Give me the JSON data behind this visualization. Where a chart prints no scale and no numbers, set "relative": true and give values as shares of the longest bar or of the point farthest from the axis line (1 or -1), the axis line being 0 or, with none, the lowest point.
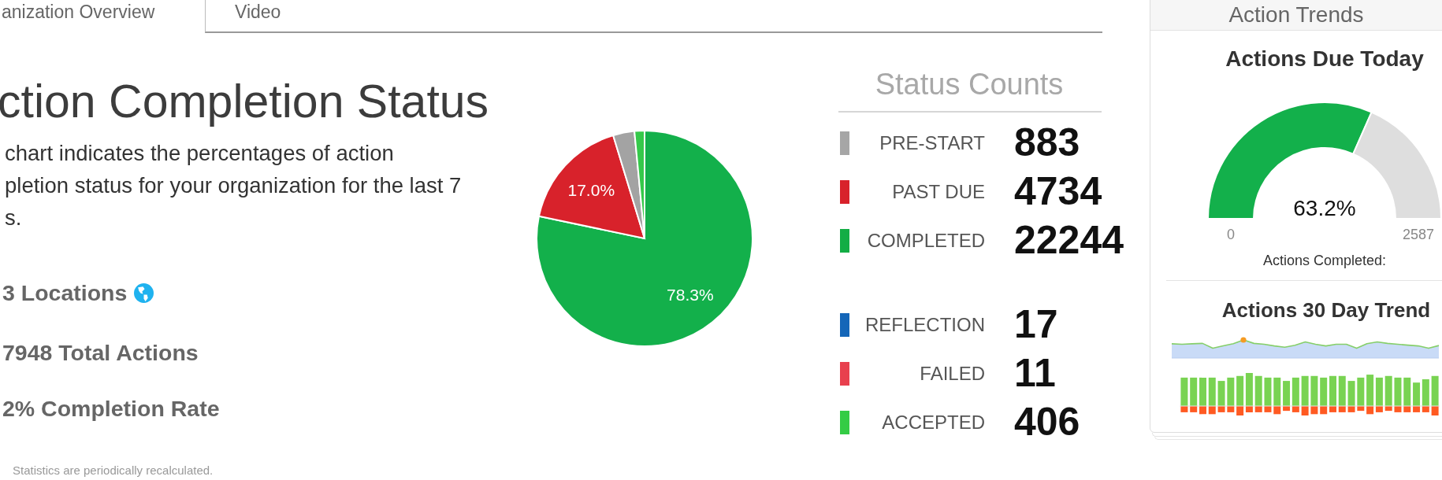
{
  "chart_data": [
    {
      "type": "other",
      "title": "ction Completion Status",
      "subtitle": "chart indicates the percentages of action\npletion status for your organization for the last 7\ns.",
      "annotations": [
        "anization Overview",
        "Video",
        "3 Locations",
        "7948 Total Actions",
        "2% Completion Rate",
        "Statistics are periodically recalculated."
      ]
    },
    {
      "type": "pie",
      "categories": [
        null,
        null,
        null,
        null
      ],
      "values": [
        78.3,
        17.0,
        3.2,
        1.5
      ],
      "colors": [
        "#13b04b",
        "#d8222b",
        "#a3a3a3",
        "#35c94a"
      ],
      "value_labels": [
        "78.3%",
        "17.0%",
        null,
        null
      ]
    },
    {
      "type": "other",
      "title": "Status Counts",
      "categories": [
        "PRE-START",
        "PAST DUE",
        "COMPLETED",
        "REFLECTION",
        "FAILED",
        "ACCEPTED"
      ],
      "value_labels": [
        "883",
        "4734",
        "22244",
        "17",
        "11",
        "406"
      ],
      "colors": [
        "#a6a6a6",
        "#d8222b",
        "#13ad45",
        "#1466b8",
        "#e8404e",
        "#34cc45"
      ]
    },
    {
      "type": "other",
      "title": "Action Trends"
    },
    {
      "type": "donut",
      "title": "Actions Due Today",
      "categories": [
        null,
        null
      ],
      "values": [
        63.2,
        36.8
      ],
      "colors": [
        "#13b04b",
        "#dedede"
      ],
      "value_labels": [
        "63.2%",
        null
      ],
      "annotations": [
        "0",
        "2587",
        "Actions Completed:"
      ]
    },
    {
      "type": "line",
      "relative": true,
      "title": "Actions 30 Day Trend",
      "categories": [
        null,
        null,
        null,
        null,
        null,
        null,
        null,
        null,
        null,
        null,
        null,
        null,
        null,
        null,
        null,
        null,
        null,
        null,
        null,
        null,
        null,
        null,
        null,
        null,
        null,
        null,
        null
      ],
      "series": [
        {
          "type": "area",
          "color": "#c9dbf7",
          "values": [
            0.79,
            0.76,
            0.79,
            0.81,
            0.54,
            0.67,
            0.79,
            1,
            0.81,
            0.76,
            0.67,
            0.6,
            0.71,
            0.89,
            0.76,
            0.67,
            0.76,
            0.76,
            0.54,
            0.79,
            0.89,
            0.81,
            0.76,
            0.71,
            0.67,
            0.54,
            0.69
          ]
        },
        {
          "color": "#86cf6a",
          "values": [
            0.79,
            0.76,
            0.79,
            0.81,
            0.54,
            0.67,
            0.79,
            1,
            0.81,
            0.76,
            0.67,
            0.6,
            0.71,
            0.89,
            0.76,
            0.67,
            0.76,
            0.76,
            0.54,
            0.79,
            0.89,
            0.81,
            0.76,
            0.71,
            0.67,
            0.54,
            0.69
          ]
        }
      ]
    },
    {
      "type": "bar",
      "relative": true,
      "categories": [
        null,
        null,
        null,
        null,
        null,
        null,
        null,
        null,
        null,
        null,
        null,
        null,
        null,
        null,
        null,
        null,
        null,
        null,
        null,
        null,
        null,
        null,
        null,
        null,
        null,
        null,
        null,
        null
      ],
      "series": [
        {
          "color": "#79d352",
          "values": [
            0.86,
            0.86,
            0.86,
            0.86,
            0.76,
            0.86,
            0.91,
            1,
            0.91,
            0.86,
            0.86,
            0.76,
            0.86,
            0.91,
            0.91,
            0.86,
            0.91,
            0.91,
            0.76,
            0.86,
            0.95,
            0.86,
            0.91,
            0.86,
            0.86,
            0.71,
            0.81,
            0.91
          ]
        }
      ]
    },
    {
      "type": "bar",
      "relative": true,
      "categories": [
        null,
        null,
        null,
        null,
        null,
        null,
        null,
        null,
        null,
        null,
        null,
        null,
        null,
        null,
        null,
        null,
        null,
        null,
        null,
        null,
        null,
        null,
        null,
        null,
        null,
        null,
        null,
        null
      ],
      "series": [
        {
          "color": "#ff5a22",
          "values": [
            -0.66,
            -0.66,
            -0.86,
            -0.86,
            -0.66,
            -0.66,
            -1,
            -0.66,
            -0.66,
            -0.66,
            -0.86,
            -0.51,
            -0.66,
            -1,
            -0.86,
            -0.86,
            -0.66,
            -0.66,
            -0.66,
            -0.51,
            -0.86,
            -0.66,
            -0.51,
            -0.66,
            -0.66,
            -0.66,
            -0.66,
            -1
          ]
        }
      ]
    }
  ]
}
